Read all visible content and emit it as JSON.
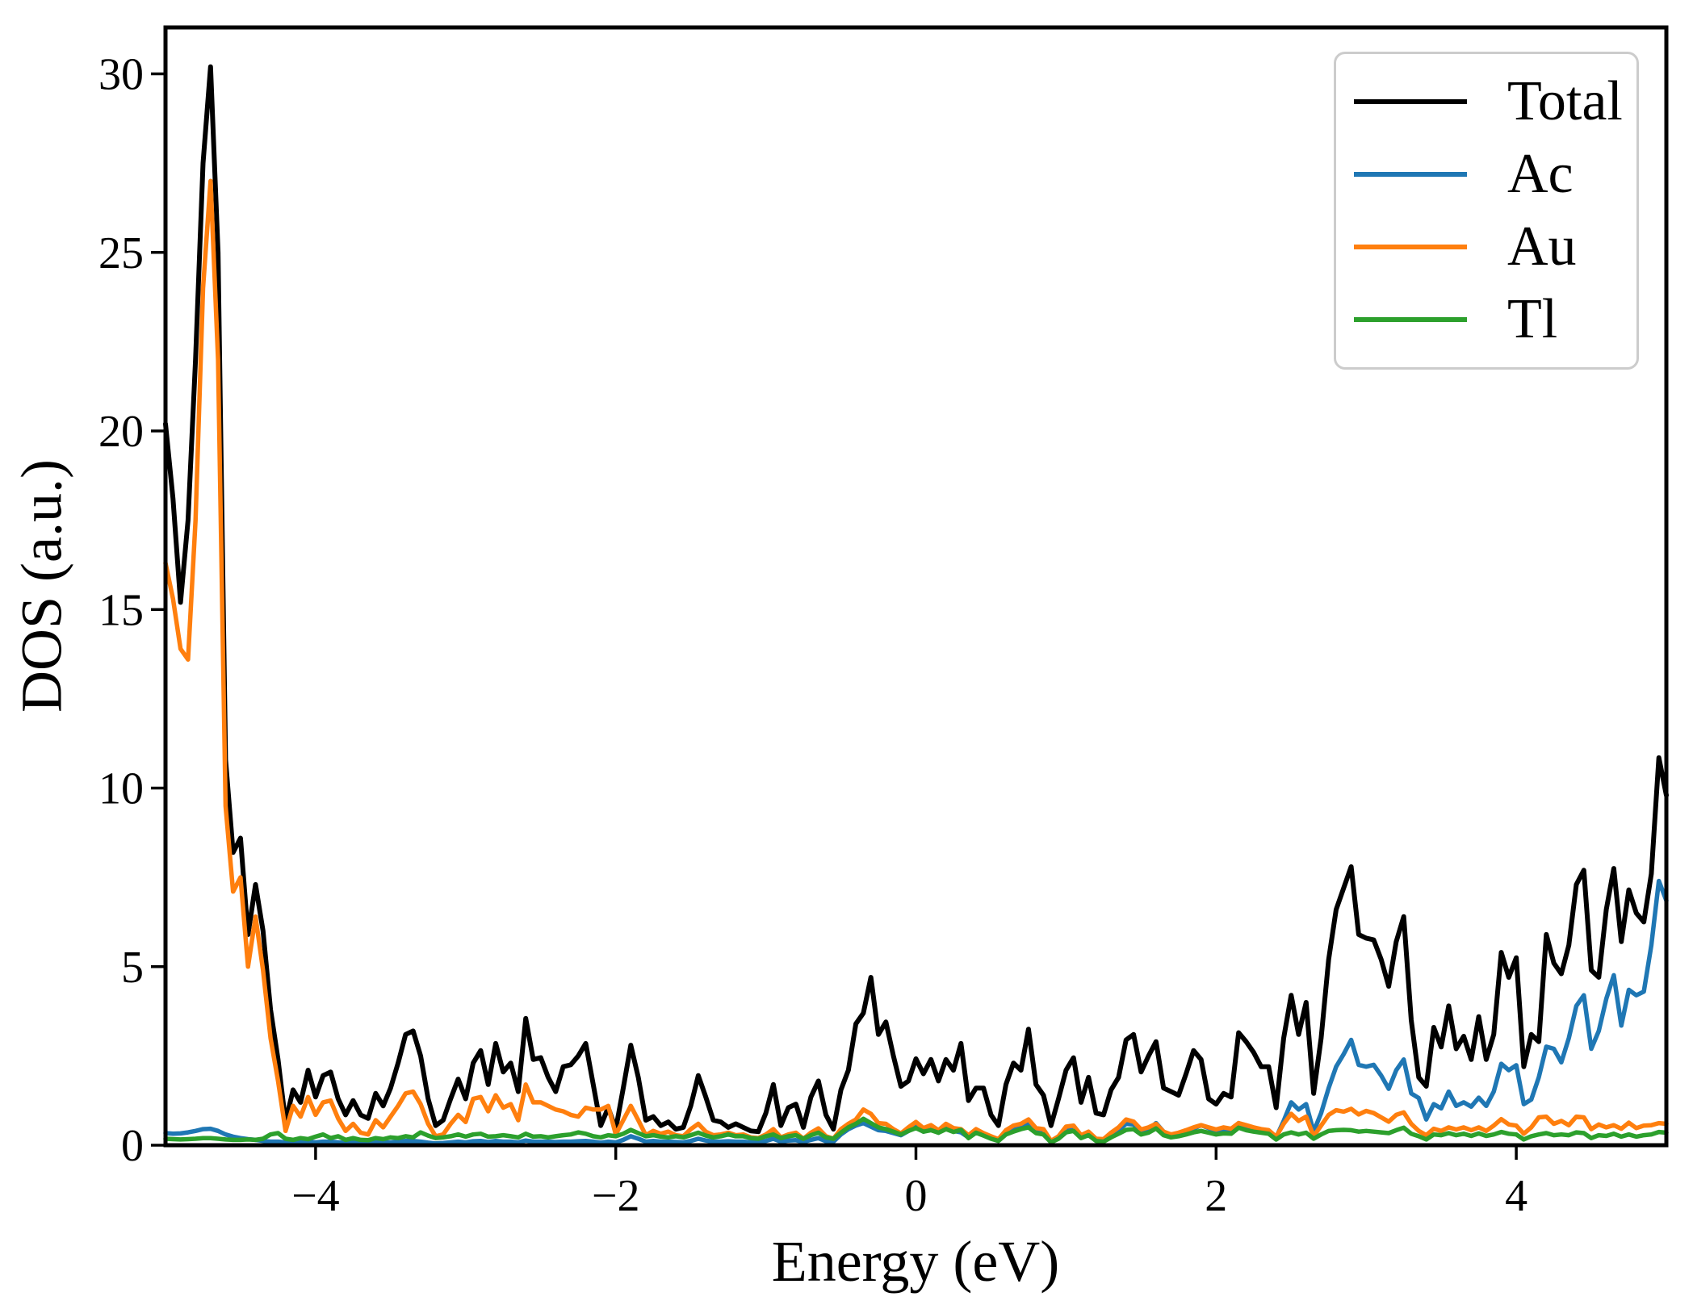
{
  "figure": {
    "background": "#ffffff"
  },
  "chart_data": {
    "type": "line",
    "title": "",
    "xlabel": "Energy (eV)",
    "ylabel": "DOS (a.u.)",
    "xlim": [
      -5,
      5
    ],
    "ylim": [
      0,
      31.3
    ],
    "grid": false,
    "legend_position": "upper right",
    "x_tick_values": [
      -4,
      -2,
      0,
      2,
      4
    ],
    "x_tick_labels": [
      "−4",
      "−2",
      "0",
      "2",
      "4"
    ],
    "y_tick_values": [
      0,
      5,
      10,
      15,
      20,
      25,
      30
    ],
    "y_tick_labels": [
      "0",
      "5",
      "10",
      "15",
      "20",
      "25",
      "30"
    ],
    "x_start": -5.0,
    "x_step": 0.05,
    "n_points": 201,
    "series": [
      {
        "name": "Total",
        "color": "#000000",
        "values": [
          20.2,
          18.1,
          15.2,
          17.5,
          22.0,
          27.5,
          30.2,
          25.0,
          10.8,
          8.2,
          8.6,
          5.9,
          7.3,
          6.0,
          3.8,
          2.4,
          0.65,
          1.55,
          1.2,
          2.1,
          1.35,
          1.95,
          2.05,
          1.3,
          0.85,
          1.25,
          0.85,
          0.75,
          1.45,
          1.1,
          1.6,
          2.3,
          3.1,
          3.2,
          2.5,
          1.3,
          0.55,
          0.7,
          1.3,
          1.85,
          1.3,
          2.3,
          2.65,
          1.7,
          2.85,
          2.05,
          2.3,
          1.5,
          3.55,
          2.4,
          2.45,
          1.9,
          1.5,
          2.2,
          2.25,
          2.5,
          2.85,
          1.7,
          0.55,
          1.05,
          0.45,
          1.6,
          2.8,
          1.9,
          0.7,
          0.8,
          0.55,
          0.65,
          0.45,
          0.5,
          1.1,
          1.95,
          1.35,
          0.7,
          0.65,
          0.5,
          0.6,
          0.5,
          0.4,
          0.38,
          0.9,
          1.7,
          0.55,
          1.05,
          1.15,
          0.5,
          1.35,
          1.8,
          0.85,
          0.45,
          1.55,
          2.1,
          3.4,
          3.7,
          4.7,
          3.1,
          3.45,
          2.5,
          1.65,
          1.8,
          2.42,
          2.0,
          2.4,
          1.8,
          2.4,
          2.1,
          2.85,
          1.25,
          1.6,
          1.6,
          0.85,
          0.55,
          1.7,
          2.3,
          2.1,
          3.25,
          1.7,
          1.4,
          0.55,
          1.3,
          2.1,
          2.45,
          1.2,
          1.9,
          0.9,
          0.85,
          1.55,
          1.9,
          2.95,
          3.1,
          2.05,
          2.5,
          2.9,
          1.6,
          1.5,
          1.4,
          2.0,
          2.65,
          2.4,
          1.3,
          1.15,
          1.45,
          1.35,
          3.15,
          2.9,
          2.6,
          2.2,
          2.2,
          1.05,
          3.0,
          4.2,
          3.1,
          4.0,
          1.45,
          3.0,
          5.2,
          6.6,
          7.2,
          7.8,
          5.9,
          5.8,
          5.75,
          5.2,
          4.45,
          5.7,
          6.4,
          3.5,
          1.9,
          1.65,
          3.3,
          2.75,
          3.9,
          2.7,
          3.05,
          2.4,
          3.6,
          2.4,
          3.1,
          5.4,
          4.7,
          5.25,
          2.2,
          3.1,
          2.9,
          5.9,
          5.1,
          4.8,
          5.6,
          7.3,
          7.7,
          4.9,
          4.7,
          6.6,
          7.75,
          5.7,
          7.15,
          6.5,
          6.25,
          7.6,
          10.85,
          9.8
        ]
      },
      {
        "name": "Ac",
        "color": "#1f77b4",
        "values": [
          0.34,
          0.32,
          0.33,
          0.36,
          0.4,
          0.45,
          0.46,
          0.4,
          0.3,
          0.24,
          0.2,
          0.17,
          0.15,
          0.12,
          0.1,
          0.1,
          0.08,
          0.1,
          0.08,
          0.1,
          0.08,
          0.1,
          0.1,
          0.08,
          0.06,
          0.08,
          0.06,
          0.06,
          0.08,
          0.07,
          0.08,
          0.1,
          0.12,
          0.12,
          0.1,
          0.07,
          0.05,
          0.06,
          0.08,
          0.1,
          0.08,
          0.11,
          0.12,
          0.09,
          0.12,
          0.1,
          0.1,
          0.08,
          0.13,
          0.1,
          0.1,
          0.1,
          0.09,
          0.1,
          0.1,
          0.11,
          0.12,
          0.1,
          0.07,
          0.1,
          0.08,
          0.15,
          0.25,
          0.18,
          0.1,
          0.12,
          0.1,
          0.1,
          0.09,
          0.08,
          0.12,
          0.18,
          0.13,
          0.1,
          0.1,
          0.11,
          0.1,
          0.1,
          0.08,
          0.08,
          0.12,
          0.18,
          0.1,
          0.13,
          0.14,
          0.09,
          0.15,
          0.2,
          0.11,
          0.1,
          0.3,
          0.45,
          0.55,
          0.62,
          0.52,
          0.42,
          0.4,
          0.34,
          0.28,
          0.4,
          0.52,
          0.38,
          0.44,
          0.35,
          0.48,
          0.4,
          0.36,
          0.22,
          0.38,
          0.28,
          0.2,
          0.13,
          0.33,
          0.46,
          0.52,
          0.62,
          0.42,
          0.38,
          0.09,
          0.2,
          0.44,
          0.48,
          0.25,
          0.33,
          0.15,
          0.14,
          0.28,
          0.42,
          0.6,
          0.58,
          0.38,
          0.44,
          0.62,
          0.38,
          0.28,
          0.3,
          0.38,
          0.46,
          0.56,
          0.48,
          0.4,
          0.44,
          0.4,
          0.62,
          0.53,
          0.48,
          0.44,
          0.4,
          0.22,
          0.68,
          1.2,
          1.0,
          1.15,
          0.38,
          0.9,
          1.6,
          2.2,
          2.55,
          2.95,
          2.25,
          2.2,
          2.25,
          1.95,
          1.58,
          2.1,
          2.4,
          1.45,
          1.32,
          0.72,
          1.15,
          1.03,
          1.5,
          1.1,
          1.2,
          1.08,
          1.33,
          1.1,
          1.5,
          2.28,
          2.1,
          2.24,
          1.15,
          1.28,
          1.9,
          2.76,
          2.7,
          2.32,
          3.0,
          3.9,
          4.2,
          2.7,
          3.2,
          4.1,
          4.76,
          3.35,
          4.35,
          4.2,
          4.3,
          5.6,
          7.4,
          6.85
        ]
      },
      {
        "name": "Au",
        "color": "#ff7f0e",
        "values": [
          16.3,
          15.3,
          13.9,
          13.6,
          17.5,
          24.0,
          27.0,
          22.0,
          9.5,
          7.1,
          7.5,
          5.0,
          6.4,
          4.9,
          3.0,
          1.8,
          0.4,
          1.1,
          0.8,
          1.35,
          0.85,
          1.2,
          1.25,
          0.75,
          0.4,
          0.6,
          0.35,
          0.3,
          0.7,
          0.5,
          0.8,
          1.1,
          1.45,
          1.5,
          1.15,
          0.6,
          0.25,
          0.3,
          0.6,
          0.85,
          0.65,
          1.3,
          1.35,
          0.95,
          1.4,
          1.05,
          1.15,
          0.7,
          1.7,
          1.2,
          1.2,
          1.1,
          1.0,
          0.95,
          0.85,
          0.8,
          1.05,
          1.0,
          1.0,
          1.1,
          0.3,
          0.7,
          1.1,
          0.7,
          0.28,
          0.4,
          0.32,
          0.38,
          0.28,
          0.25,
          0.45,
          0.6,
          0.38,
          0.28,
          0.3,
          0.35,
          0.28,
          0.3,
          0.22,
          0.2,
          0.3,
          0.45,
          0.22,
          0.3,
          0.35,
          0.18,
          0.35,
          0.47,
          0.25,
          0.18,
          0.45,
          0.6,
          0.72,
          1.0,
          0.88,
          0.62,
          0.6,
          0.45,
          0.33,
          0.5,
          0.65,
          0.48,
          0.56,
          0.42,
          0.6,
          0.48,
          0.45,
          0.28,
          0.45,
          0.34,
          0.25,
          0.17,
          0.42,
          0.55,
          0.6,
          0.72,
          0.48,
          0.45,
          0.12,
          0.25,
          0.52,
          0.55,
          0.28,
          0.38,
          0.18,
          0.17,
          0.35,
          0.5,
          0.72,
          0.66,
          0.44,
          0.5,
          0.6,
          0.38,
          0.3,
          0.35,
          0.42,
          0.5,
          0.56,
          0.5,
          0.44,
          0.5,
          0.46,
          0.62,
          0.56,
          0.5,
          0.45,
          0.42,
          0.24,
          0.6,
          0.88,
          0.68,
          0.8,
          0.25,
          0.55,
          0.85,
          0.98,
          0.94,
          1.02,
          0.86,
          0.96,
          0.9,
          0.78,
          0.66,
          0.85,
          0.92,
          0.6,
          0.4,
          0.28,
          0.46,
          0.4,
          0.5,
          0.44,
          0.5,
          0.42,
          0.5,
          0.4,
          0.55,
          0.73,
          0.58,
          0.55,
          0.32,
          0.5,
          0.78,
          0.8,
          0.6,
          0.68,
          0.56,
          0.8,
          0.78,
          0.45,
          0.58,
          0.5,
          0.56,
          0.46,
          0.63,
          0.48,
          0.55,
          0.56,
          0.62,
          0.6
        ]
      },
      {
        "name": "Tl",
        "color": "#2ca02c",
        "values": [
          0.18,
          0.17,
          0.16,
          0.17,
          0.18,
          0.2,
          0.2,
          0.18,
          0.16,
          0.15,
          0.15,
          0.16,
          0.15,
          0.18,
          0.3,
          0.34,
          0.18,
          0.15,
          0.2,
          0.17,
          0.24,
          0.3,
          0.2,
          0.25,
          0.15,
          0.2,
          0.15,
          0.14,
          0.2,
          0.17,
          0.22,
          0.2,
          0.25,
          0.22,
          0.36,
          0.27,
          0.2,
          0.22,
          0.25,
          0.3,
          0.24,
          0.3,
          0.32,
          0.24,
          0.25,
          0.28,
          0.25,
          0.22,
          0.32,
          0.24,
          0.25,
          0.22,
          0.25,
          0.28,
          0.3,
          0.36,
          0.32,
          0.25,
          0.22,
          0.28,
          0.25,
          0.32,
          0.43,
          0.34,
          0.25,
          0.28,
          0.24,
          0.22,
          0.25,
          0.22,
          0.28,
          0.35,
          0.27,
          0.22,
          0.25,
          0.3,
          0.25,
          0.25,
          0.2,
          0.18,
          0.25,
          0.3,
          0.2,
          0.25,
          0.28,
          0.18,
          0.28,
          0.35,
          0.22,
          0.18,
          0.35,
          0.5,
          0.6,
          0.74,
          0.62,
          0.5,
          0.45,
          0.38,
          0.3,
          0.4,
          0.48,
          0.38,
          0.42,
          0.35,
          0.45,
          0.37,
          0.43,
          0.2,
          0.35,
          0.27,
          0.18,
          0.12,
          0.3,
          0.38,
          0.45,
          0.5,
          0.34,
          0.3,
          0.08,
          0.18,
          0.36,
          0.4,
          0.2,
          0.28,
          0.12,
          0.1,
          0.22,
          0.32,
          0.43,
          0.45,
          0.3,
          0.35,
          0.47,
          0.28,
          0.22,
          0.25,
          0.3,
          0.36,
          0.4,
          0.35,
          0.3,
          0.33,
          0.32,
          0.49,
          0.42,
          0.38,
          0.35,
          0.32,
          0.16,
          0.3,
          0.36,
          0.3,
          0.35,
          0.18,
          0.3,
          0.4,
          0.42,
          0.43,
          0.42,
          0.38,
          0.4,
          0.38,
          0.36,
          0.34,
          0.42,
          0.49,
          0.32,
          0.25,
          0.16,
          0.3,
          0.28,
          0.34,
          0.28,
          0.32,
          0.26,
          0.33,
          0.26,
          0.3,
          0.37,
          0.32,
          0.3,
          0.16,
          0.25,
          0.3,
          0.34,
          0.28,
          0.3,
          0.28,
          0.36,
          0.34,
          0.2,
          0.28,
          0.26,
          0.32,
          0.24,
          0.3,
          0.24,
          0.28,
          0.3,
          0.37,
          0.35
        ]
      }
    ]
  }
}
